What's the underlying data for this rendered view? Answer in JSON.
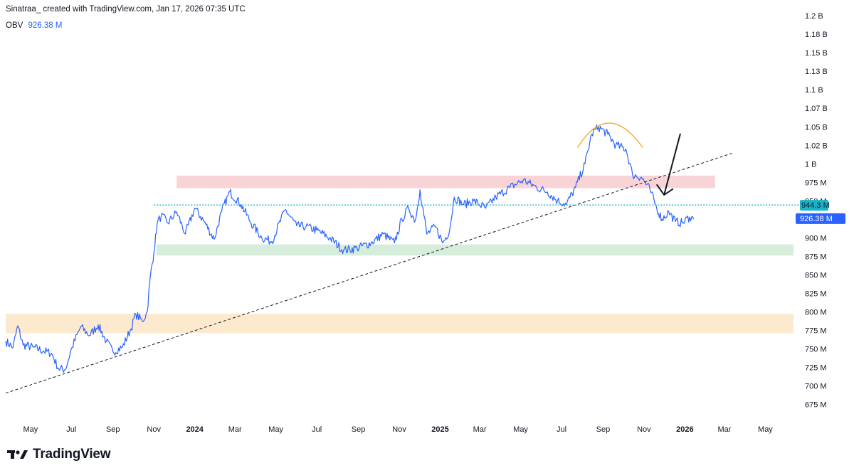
{
  "header": {
    "attribution": "Sinatraa_ created with TradingView.com, Jan 17, 2026 07:35 UTC"
  },
  "legend": {
    "indicator": "OBV",
    "value": "926.38 M"
  },
  "footer": {
    "brand": "TradingView"
  },
  "colors": {
    "line": "#2962ff",
    "accent_blue": "#2962ff",
    "resistance_zone": "#f8c9cd",
    "support_zone": "#cde9d3",
    "lower_zone": "#fde3c2",
    "dotted_level": "#18b2c9",
    "trendline": "#131722",
    "arc": "#f5a623"
  },
  "chart_data": {
    "type": "line",
    "title": "",
    "xlabel": "",
    "ylabel": "",
    "ylim": [
      657,
      1206
    ],
    "y_ticks": [
      {
        "v": 1200,
        "label": "1.2 B"
      },
      {
        "v": 1175,
        "label": "1.18 B"
      },
      {
        "v": 1150,
        "label": "1.15 B"
      },
      {
        "v": 1125,
        "label": "1.13 B"
      },
      {
        "v": 1100,
        "label": "1.1 B"
      },
      {
        "v": 1075,
        "label": "1.07 B"
      },
      {
        "v": 1050,
        "label": "1.05 B"
      },
      {
        "v": 1025,
        "label": "1.02 B"
      },
      {
        "v": 1000,
        "label": "1 B"
      },
      {
        "v": 975,
        "label": "975 M"
      },
      {
        "v": 950,
        "label": "950 M"
      },
      {
        "v": 900,
        "label": "900 M"
      },
      {
        "v": 875,
        "label": "875 M"
      },
      {
        "v": 850,
        "label": "850 M"
      },
      {
        "v": 825,
        "label": "825 M"
      },
      {
        "v": 800,
        "label": "800 M"
      },
      {
        "v": 775,
        "label": "775 M"
      },
      {
        "v": 750,
        "label": "750 M"
      },
      {
        "v": 725,
        "label": "725 M"
      },
      {
        "v": 700,
        "label": "700 M"
      },
      {
        "v": 675,
        "label": "675 M"
      }
    ],
    "x_ticks": [
      {
        "date": "2023-05-01",
        "label": "May",
        "bold": false
      },
      {
        "date": "2023-07-01",
        "label": "Jul",
        "bold": false
      },
      {
        "date": "2023-09-01",
        "label": "Sep",
        "bold": false
      },
      {
        "date": "2023-11-01",
        "label": "Nov",
        "bold": false
      },
      {
        "date": "2024-01-01",
        "label": "2024",
        "bold": true
      },
      {
        "date": "2024-03-01",
        "label": "Mar",
        "bold": false
      },
      {
        "date": "2024-05-01",
        "label": "May",
        "bold": false
      },
      {
        "date": "2024-07-01",
        "label": "Jul",
        "bold": false
      },
      {
        "date": "2024-09-01",
        "label": "Sep",
        "bold": false
      },
      {
        "date": "2024-11-01",
        "label": "Nov",
        "bold": false
      },
      {
        "date": "2025-01-01",
        "label": "2025",
        "bold": true
      },
      {
        "date": "2025-03-01",
        "label": "Mar",
        "bold": false
      },
      {
        "date": "2025-05-01",
        "label": "May",
        "bold": false
      },
      {
        "date": "2025-07-01",
        "label": "Jul",
        "bold": false
      },
      {
        "date": "2025-09-01",
        "label": "Sep",
        "bold": false
      },
      {
        "date": "2025-11-01",
        "label": "Nov",
        "bold": false
      },
      {
        "date": "2026-01-01",
        "label": "2026",
        "bold": true
      },
      {
        "date": "2026-03-01",
        "label": "Mar",
        "bold": false
      },
      {
        "date": "2026-05-01",
        "label": "May",
        "bold": false
      }
    ],
    "x_range": [
      "2023-03-25",
      "2026-06-12"
    ],
    "series": [
      {
        "points": [
          [
            "2023-03-25",
            760
          ],
          [
            "2023-04-05",
            752
          ],
          [
            "2023-04-12",
            781
          ],
          [
            "2023-04-20",
            755
          ],
          [
            "2023-05-05",
            752
          ],
          [
            "2023-05-20",
            747
          ],
          [
            "2023-06-01",
            744
          ],
          [
            "2023-06-12",
            723
          ],
          [
            "2023-06-22",
            722
          ],
          [
            "2023-07-02",
            752
          ],
          [
            "2023-07-15",
            780
          ],
          [
            "2023-07-28",
            768
          ],
          [
            "2023-08-10",
            782
          ],
          [
            "2023-08-22",
            760
          ],
          [
            "2023-09-01",
            746
          ],
          [
            "2023-09-15",
            752
          ],
          [
            "2023-09-28",
            777
          ],
          [
            "2023-10-05",
            797
          ],
          [
            "2023-10-15",
            787
          ],
          [
            "2023-10-22",
            800
          ],
          [
            "2023-10-27",
            850
          ],
          [
            "2023-11-01",
            880
          ],
          [
            "2023-11-06",
            920
          ],
          [
            "2023-11-12",
            930
          ],
          [
            "2023-11-22",
            920
          ],
          [
            "2023-12-05",
            935
          ],
          [
            "2023-12-18",
            905
          ],
          [
            "2024-01-01",
            940
          ],
          [
            "2024-01-15",
            922
          ],
          [
            "2024-01-30",
            898
          ],
          [
            "2024-02-10",
            935
          ],
          [
            "2024-02-22",
            962
          ],
          [
            "2024-03-10",
            945
          ],
          [
            "2024-03-25",
            920
          ],
          [
            "2024-04-10",
            900
          ],
          [
            "2024-04-25",
            895
          ],
          [
            "2024-05-15",
            938
          ],
          [
            "2024-06-01",
            916
          ],
          [
            "2024-06-15",
            915
          ],
          [
            "2024-07-01",
            910
          ],
          [
            "2024-07-20",
            900
          ],
          [
            "2024-08-10",
            883
          ],
          [
            "2024-08-30",
            886
          ],
          [
            "2024-09-20",
            893
          ],
          [
            "2024-10-08",
            905
          ],
          [
            "2024-10-25",
            893
          ],
          [
            "2024-11-05",
            925
          ],
          [
            "2024-11-15",
            940
          ],
          [
            "2024-11-25",
            923
          ],
          [
            "2024-12-02",
            965
          ],
          [
            "2024-12-12",
            905
          ],
          [
            "2024-12-25",
            915
          ],
          [
            "2025-01-05",
            893
          ],
          [
            "2025-01-15",
            910
          ],
          [
            "2025-01-22",
            955
          ],
          [
            "2025-02-05",
            945
          ],
          [
            "2025-02-20",
            950
          ],
          [
            "2025-03-10",
            940
          ],
          [
            "2025-03-25",
            955
          ],
          [
            "2025-04-15",
            968
          ],
          [
            "2025-05-05",
            978
          ],
          [
            "2025-05-25",
            968
          ],
          [
            "2025-06-10",
            962
          ],
          [
            "2025-06-25",
            950
          ],
          [
            "2025-07-08",
            945
          ],
          [
            "2025-07-22",
            968
          ],
          [
            "2025-08-05",
            1000
          ],
          [
            "2025-08-15",
            1040
          ],
          [
            "2025-08-25",
            1050
          ],
          [
            "2025-09-08",
            1040
          ],
          [
            "2025-09-20",
            1025
          ],
          [
            "2025-10-05",
            1020
          ],
          [
            "2025-10-15",
            985
          ],
          [
            "2025-10-28",
            982
          ],
          [
            "2025-11-10",
            965
          ],
          [
            "2025-11-20",
            940
          ],
          [
            "2025-11-28",
            925
          ],
          [
            "2025-12-08",
            935
          ],
          [
            "2025-12-18",
            922
          ],
          [
            "2025-12-28",
            920
          ],
          [
            "2026-01-08",
            928
          ],
          [
            "2026-01-14",
            925
          ]
        ]
      }
    ],
    "current_value_label": "926.38 M",
    "current_value": 926.38,
    "level_label": "944.3 M",
    "level_value": 944.3,
    "zones": [
      {
        "name": "resistance",
        "from": "2023-12-05",
        "to": "2026-02-15",
        "low": 967,
        "high": 984
      },
      {
        "name": "support",
        "from": "2023-11-05",
        "to": "2026-06-12",
        "low": 876,
        "high": 891
      },
      {
        "name": "lower",
        "from": "2023-03-25",
        "to": "2026-06-12",
        "low": 771,
        "high": 797
      }
    ],
    "level_line": {
      "from": "2023-11-01",
      "to": "2026-06-12",
      "y": 944.3
    },
    "trendline": {
      "from": [
        "2023-03-25",
        690
      ],
      "to": [
        "2026-03-15",
        1015
      ]
    },
    "arc": {
      "from": [
        "2025-07-25",
        1022
      ],
      "peak": [
        "2025-09-10",
        1055
      ],
      "to": [
        "2025-10-30",
        1022
      ]
    },
    "arrow": {
      "from": [
        "2025-12-25",
        1040
      ],
      "to": [
        "2025-12-01",
        958
      ]
    },
    "grid": false
  }
}
